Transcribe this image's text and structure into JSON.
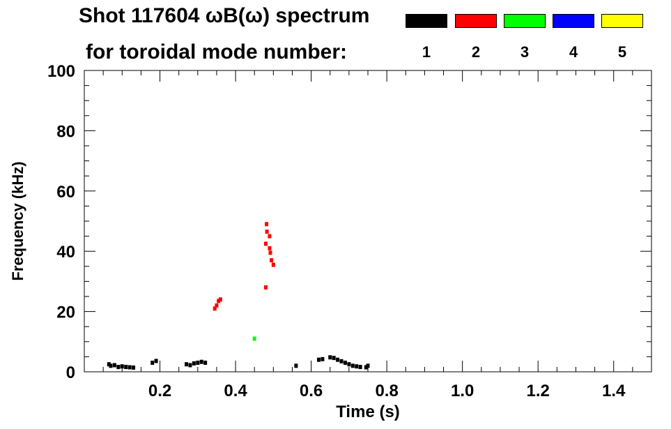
{
  "chart_data": {
    "type": "spectrogram",
    "title_line1": "Shot 117604 ωB(ω) spectrum",
    "title_line2": "for toroidal mode number:",
    "xlabel": "Time (s)",
    "ylabel": "Frequency (kHz)",
    "xlim": [
      0.0,
      1.5
    ],
    "ylim": [
      0,
      100
    ],
    "x_ticks": [
      0.2,
      0.4,
      0.6,
      0.8,
      1.0,
      1.2,
      1.4
    ],
    "x_tick_labels": [
      "0.2",
      "0.4",
      "0.6",
      "0.8",
      "1.0",
      "1.2",
      "1.4"
    ],
    "y_ticks": [
      0,
      20,
      40,
      60,
      80,
      100
    ],
    "y_tick_labels": [
      "0",
      "20",
      "40",
      "60",
      "80",
      "100"
    ],
    "legend": [
      {
        "label": "1",
        "color": "#000000"
      },
      {
        "label": "2",
        "color": "#ff0000"
      },
      {
        "label": "3",
        "color": "#00ff00"
      },
      {
        "label": "4",
        "color": "#0000ff"
      },
      {
        "label": "5",
        "color": "#ffff00"
      }
    ],
    "series": [
      {
        "mode": "1",
        "color": "#000000",
        "points": [
          [
            0.065,
            2.5
          ],
          [
            0.07,
            2.0
          ],
          [
            0.08,
            2.2
          ],
          [
            0.09,
            1.6
          ],
          [
            0.1,
            1.8
          ],
          [
            0.11,
            1.6
          ],
          [
            0.12,
            1.5
          ],
          [
            0.13,
            1.4
          ],
          [
            0.18,
            3.0
          ],
          [
            0.19,
            3.6
          ],
          [
            0.27,
            2.5
          ],
          [
            0.28,
            2.2
          ],
          [
            0.29,
            2.8
          ],
          [
            0.3,
            3.0
          ],
          [
            0.31,
            3.3
          ],
          [
            0.32,
            3.0
          ],
          [
            0.56,
            2.0
          ],
          [
            0.62,
            4.0
          ],
          [
            0.63,
            4.2
          ],
          [
            0.65,
            4.8
          ],
          [
            0.66,
            4.6
          ],
          [
            0.67,
            4.0
          ],
          [
            0.68,
            3.5
          ],
          [
            0.69,
            3.0
          ],
          [
            0.7,
            2.5
          ],
          [
            0.71,
            2.0
          ],
          [
            0.72,
            1.8
          ],
          [
            0.73,
            1.6
          ],
          [
            0.745,
            1.5
          ],
          [
            0.75,
            2.0
          ]
        ]
      },
      {
        "mode": "2",
        "color": "#ff0000",
        "points": [
          [
            0.345,
            21.0
          ],
          [
            0.35,
            22.0
          ],
          [
            0.355,
            23.5
          ],
          [
            0.36,
            24.0
          ],
          [
            0.482,
            49.0
          ],
          [
            0.483,
            46.5
          ],
          [
            0.48,
            42.5
          ],
          [
            0.49,
            41.0
          ],
          [
            0.492,
            39.5
          ],
          [
            0.495,
            37.0
          ],
          [
            0.5,
            35.5
          ],
          [
            0.48,
            28.0
          ],
          [
            0.49,
            45.0
          ]
        ]
      },
      {
        "mode": "3",
        "color": "#00ff00",
        "points": [
          [
            0.45,
            11.0
          ]
        ]
      },
      {
        "mode": "4",
        "color": "#0000ff",
        "points": []
      },
      {
        "mode": "5",
        "color": "#ffff00",
        "points": []
      }
    ]
  }
}
